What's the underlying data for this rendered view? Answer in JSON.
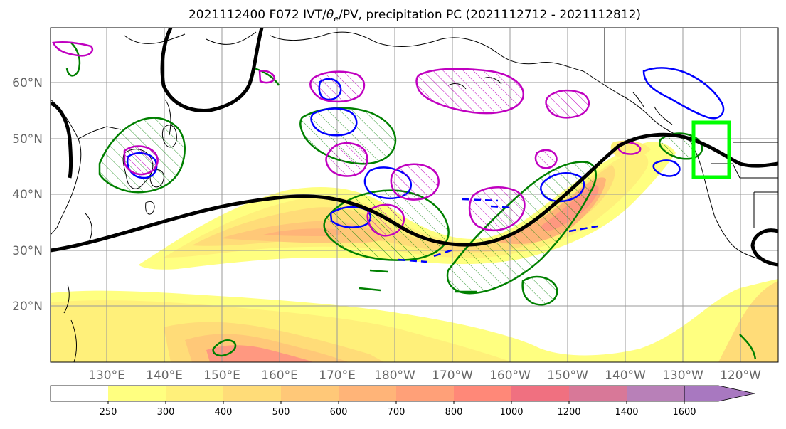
{
  "title": {
    "prefix": "2021112400 F072 IVT/",
    "theta_symbol": "θ",
    "theta_sub": "e",
    "suffix": "/PV, precipitation PC (2021112712 - 2021112812)"
  },
  "map": {
    "lon_labels": [
      "130°E",
      "140°E",
      "150°E",
      "160°E",
      "170°E",
      "180°W",
      "170°W",
      "160°W",
      "150°W",
      "140°W",
      "130°W",
      "120°W"
    ],
    "lat_labels": [
      "60°N",
      "50°N",
      "40°N",
      "30°N",
      "20°N"
    ]
  },
  "colorbar": {
    "unit": "",
    "levels": [
      "250",
      "300",
      "400",
      "500",
      "600",
      "700",
      "800",
      "1000",
      "1200",
      "1400",
      "1600"
    ],
    "colors": [
      "#ffffff",
      "#ffff80",
      "#fff07a",
      "#ffdc78",
      "#ffc878",
      "#ffb478",
      "#ffa078",
      "#ff8878",
      "#f07080",
      "#d87898",
      "#b880b8",
      "#a878c0"
    ]
  },
  "legend_colors": {
    "jet_contour": "#000000",
    "theta_e_contour": "#008000",
    "pv_contour": "#0000ff",
    "precip_pc_contour": "#c000c0",
    "target_box": "#00ff00",
    "land_outline": "#000000"
  }
}
